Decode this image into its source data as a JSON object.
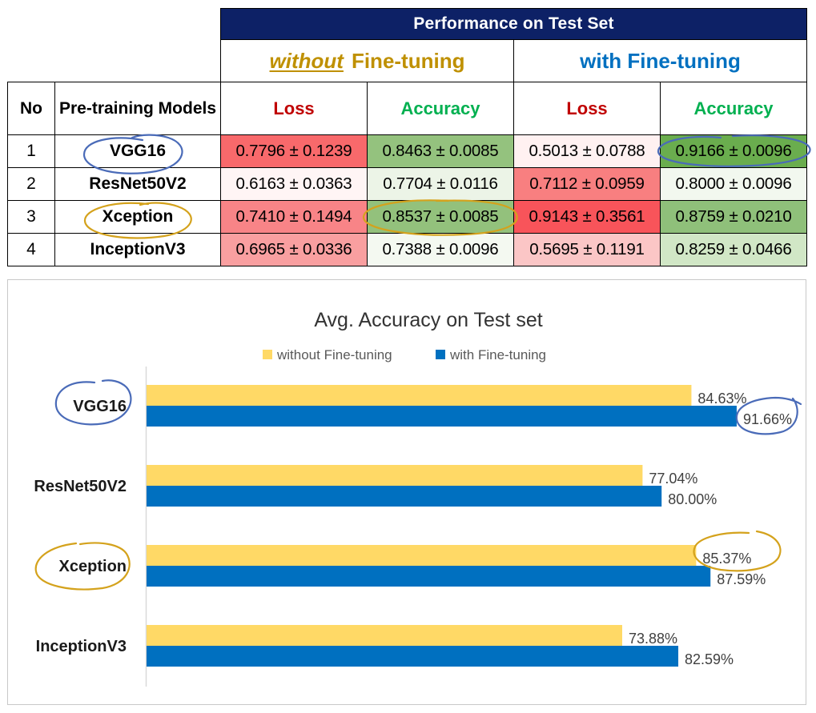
{
  "table": {
    "group_header": "Performance on Test Set",
    "without_ft": {
      "emph": "without",
      "rest": "Fine-tuning"
    },
    "with_ft": "with Fine-tuning",
    "col_no": "No",
    "col_model": "Pre-training Models",
    "col_loss": "Loss",
    "col_acc": "Accuracy",
    "rows": [
      {
        "no": "1",
        "model": "VGG16",
        "loss_wo": "0.7796 ± 0.1239",
        "acc_wo": "0.8463 ± 0.0085",
        "loss_w": "0.5013 ± 0.0788",
        "acc_w": "0.9166 ± 0.0096"
      },
      {
        "no": "2",
        "model": "ResNet50V2",
        "loss_wo": "0.6163 ± 0.0363",
        "acc_wo": "0.7704 ± 0.0116",
        "loss_w": "0.7112 ± 0.0959",
        "acc_w": "0.8000 ± 0.0096"
      },
      {
        "no": "3",
        "model": "Xception",
        "loss_wo": "0.7410 ± 0.1494",
        "acc_wo": "0.8537 ± 0.0085",
        "loss_w": "0.9143 ± 0.3561",
        "acc_w": "0.8759 ± 0.0210"
      },
      {
        "no": "4",
        "model": "InceptionV3",
        "loss_wo": "0.6965 ± 0.0336",
        "acc_wo": "0.7388 ± 0.0096",
        "loss_w": "0.5695 ± 0.1191",
        "acc_w": "0.8259 ± 0.0466"
      }
    ],
    "cell_colors": [
      [
        "#f8696b",
        "#94c27e",
        "#fff1f1",
        "#6aad4e"
      ],
      [
        "#fff5f5",
        "#ecf4e7",
        "#f87f80",
        "#f2f8ef"
      ],
      [
        "#f88487",
        "#93c17c",
        "#f8545a",
        "#8fc07a"
      ],
      [
        "#f99fa0",
        "#f4f9f1",
        "#fbc6c6",
        "#d1e7c6"
      ]
    ],
    "colors": {
      "header_bg": "#0d2166",
      "without": "#bf9000",
      "with": "#0070c0",
      "loss": "#c00000",
      "acc": "#00b050"
    }
  },
  "chart_data": {
    "type": "bar",
    "orientation": "horizontal",
    "title": "Avg. Accuracy on Test set",
    "categories": [
      "VGG16",
      "ResNet50V2",
      "Xception",
      "InceptionV3"
    ],
    "series": [
      {
        "name": "without Fine-tuning",
        "color": "#ffd966",
        "values": [
          84.63,
          77.04,
          85.37,
          73.88
        ],
        "labels": [
          "84.63%",
          "77.04%",
          "85.37%",
          "73.88%"
        ]
      },
      {
        "name": "with Fine-tuning",
        "color": "#0070c0",
        "values": [
          91.66,
          80.0,
          87.59,
          82.59
        ],
        "labels": [
          "91.66%",
          "80.00%",
          "87.59%",
          "82.59%"
        ]
      }
    ],
    "xlim": [
      0,
      100
    ],
    "legend": "top",
    "grid": false
  },
  "annotations": {
    "blue_color": "#4a6bb8",
    "gold_color": "#d4a21c"
  }
}
